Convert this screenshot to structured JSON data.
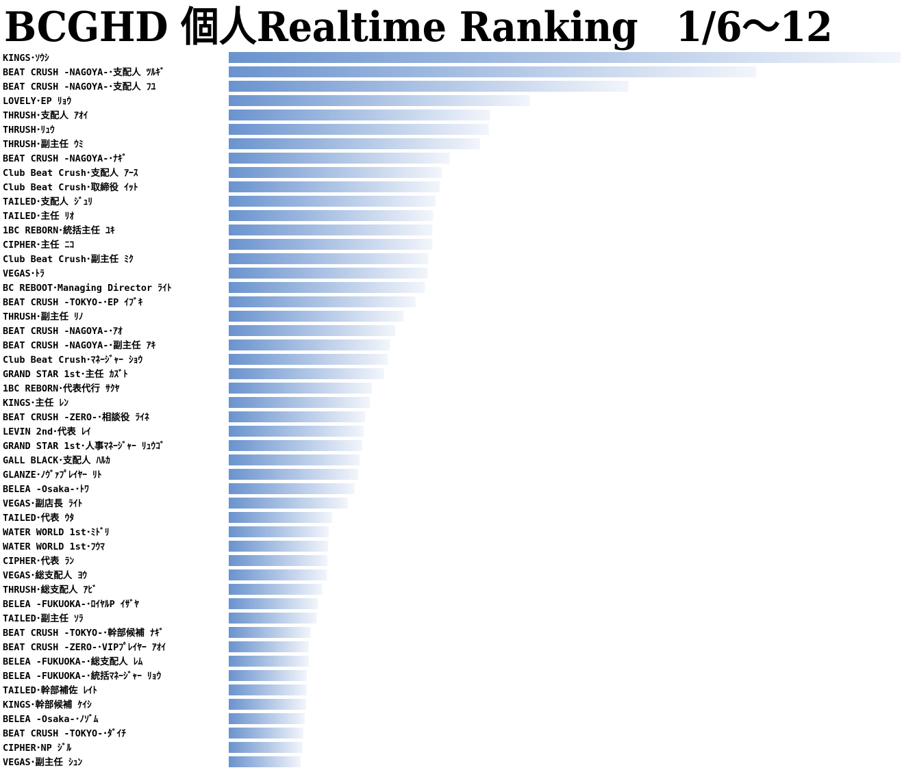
{
  "chart_data": {
    "type": "bar",
    "orientation": "horizontal",
    "title": "BCGHD 個人Realtime Ranking　1/6～12",
    "xlabel": "",
    "ylabel": "",
    "grid": false,
    "xlim": [
      0,
      100
    ],
    "bar_gradient": [
      "#6a93ce",
      "#f2f5fb"
    ],
    "categories": [
      "KINGS･ｿｳｼ",
      "BEAT CRUSH -NAGOYA-･支配人 ﾂﾙｷﾞ",
      "BEAT CRUSH -NAGOYA-･支配人 ﾌﾕ",
      "LOVELY･EP ﾘｮｳ",
      "THRUSH･支配人 ｱｵｲ",
      "THRUSH･ﾘｭｳ",
      "THRUSH･副主任 ｳﾐ",
      "BEAT CRUSH -NAGOYA-･ﾅｷﾞ",
      "Club Beat Crush･支配人 ｱｰｽ",
      "Club Beat Crush･取締役 ｲｯﾄ",
      "TAILED･支配人 ｼﾞｭﾘ",
      "TAILED･主任 ﾘｵ",
      "1BC REBORN･統括主任 ﾕｷ",
      "CIPHER･主任 ﾆｺ",
      "Club Beat Crush･副主任 ﾐｸ",
      "VEGAS･ﾄﾗ",
      "BC REBOOT･Managing Director ﾗｲﾄ",
      "BEAT CRUSH -TOKYO-･EP ｲﾌﾞｷ",
      "THRUSH･副主任 ﾘﾉ",
      "BEAT CRUSH -NAGOYA-･ｱｵ",
      "BEAT CRUSH -NAGOYA-･副主任 ｱｷ",
      "Club Beat Crush･ﾏﾈｰｼﾞｬｰ ｼｮｳ",
      "GRAND STAR 1st･主任 ｶｽﾞﾄ",
      "1BC REBORN･代表代行 ｻｸﾔ",
      "KINGS･主任 ﾚﾝ",
      "BEAT CRUSH -ZERO-･相談役 ﾗｲﾈ",
      "LEVIN 2nd･代表 ﾚｲ",
      "GRAND STAR 1st･人事ﾏﾈｰｼﾞｬｰ ﾘｭｳｺﾞ",
      "GALL BLACK･支配人 ﾊﾙｶ",
      "GLANZE･ﾉｳﾞｧﾌﾟﾚｲﾔｰ ﾘﾄ",
      "BELEA -Osaka-･ﾄﾜ",
      "VEGAS･副店長 ﾗｲﾄ",
      "TAILED･代表 ｳﾀ",
      "WATER WORLD 1st･ﾐﾄﾞﾘ",
      "WATER WORLD 1st･ﾌｳﾏ",
      "CIPHER･代表 ﾗﾝ",
      "VEGAS･総支配人 ﾖｳ",
      "THRUSH･総支配人 ｱﾋﾞ",
      "BELEA -FUKUOKA-･ﾛｲﾔﾙP ｲｻﾞﾔ",
      "TAILED･副主任 ｿﾗ",
      "BEAT CRUSH -TOKYO-･幹部候補 ﾅｷﾞ",
      "BEAT CRUSH -ZERO-･VIPﾌﾟﾚｲﾔｰ ｱｵｲ",
      "BELEA -FUKUOKA-･総支配人 ﾚﾑ",
      "BELEA -FUKUOKA-･統括ﾏﾈｰｼﾞｬｰ ﾘｮｳ",
      "TAILED･幹部補佐 ﾚｲﾄ",
      "KINGS･幹部候補 ｹｲｼ",
      "BELEA -Osaka-･ﾉｿﾞﾑ",
      "BEAT CRUSH -TOKYO-･ﾀﾞｲﾁ",
      "CIPHER･NP ｼﾞﾙ",
      "VEGAS･副主任 ｼｭﾝ"
    ],
    "values": [
      100,
      78.5,
      59.5,
      44.8,
      38.9,
      38.7,
      37.4,
      32.9,
      31.7,
      31.4,
      30.8,
      30.4,
      30.3,
      30.3,
      29.7,
      29.6,
      29.2,
      27.8,
      26.0,
      24.8,
      24.0,
      23.7,
      23.1,
      21.3,
      21.0,
      20.3,
      20.1,
      19.9,
      19.5,
      19.3,
      18.7,
      17.7,
      15.4,
      14.9,
      14.8,
      14.7,
      14.6,
      13.9,
      13.3,
      13.1,
      12.2,
      11.9,
      11.9,
      11.6,
      11.6,
      11.5,
      11.3,
      11.1,
      11.0,
      10.7
    ]
  }
}
